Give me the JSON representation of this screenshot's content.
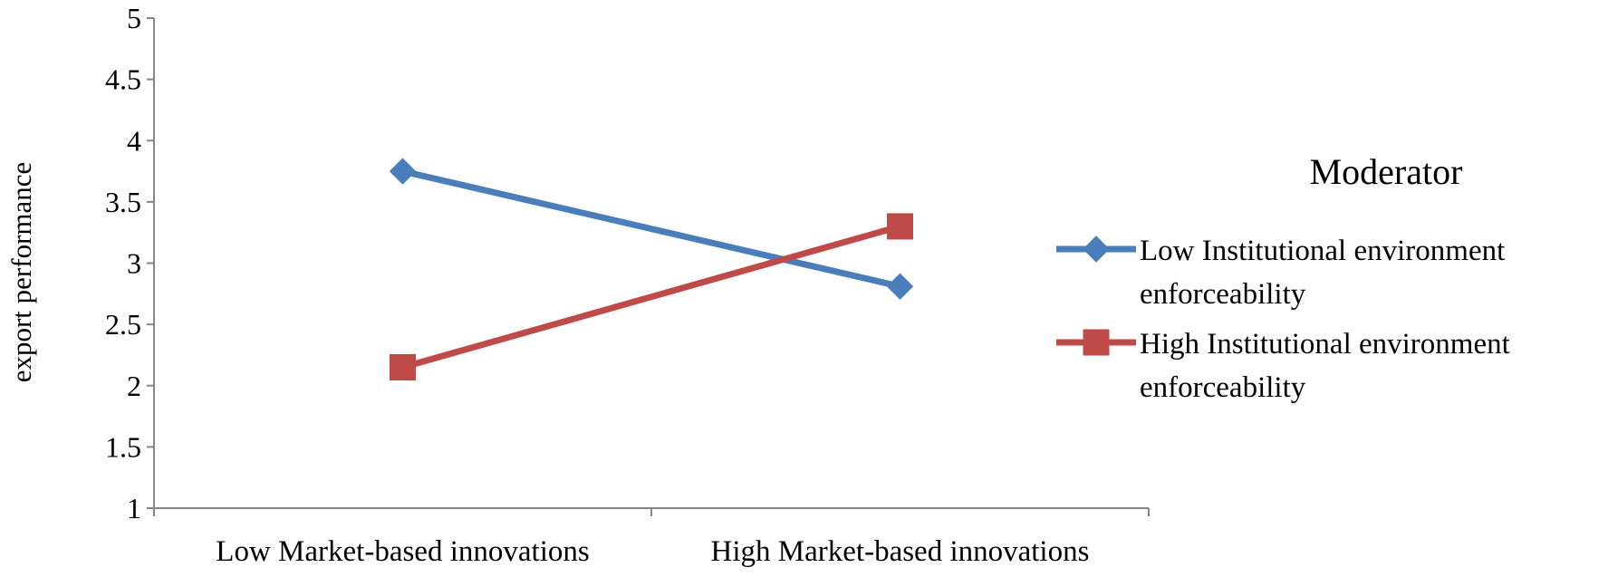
{
  "chart_data": {
    "type": "line",
    "categories": [
      "Low Market-based innovations",
      "High Market-based innovations"
    ],
    "ylabel": "export performance",
    "xlabel": "",
    "ylim": [
      1,
      5
    ],
    "yticks": [
      "1",
      "1.5",
      "2",
      "2.5",
      "3",
      "3.5",
      "4",
      "4.5",
      "5"
    ],
    "grid": false,
    "legend": {
      "title": "Moderator",
      "placement": "right"
    },
    "series": [
      {
        "name": "Low Institutional environment enforceability",
        "name_lines": [
          "Low Institutional environment",
          "enforceability"
        ],
        "values": [
          3.75,
          2.81
        ],
        "color": "#4a7ebb",
        "marker": "diamond"
      },
      {
        "name": "High Institutional environment enforceability",
        "name_lines": [
          "High Institutional environment",
          "enforceability"
        ],
        "values": [
          2.15,
          3.3
        ],
        "color": "#be4b48",
        "marker": "square"
      }
    ]
  }
}
